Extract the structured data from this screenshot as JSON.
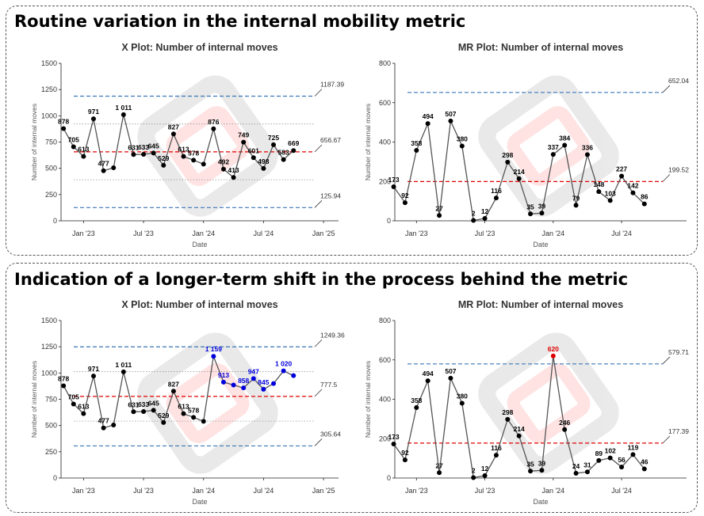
{
  "panels": [
    {
      "title": "Routine variation in the internal mobility metric",
      "charts": [
        {
          "type": "line",
          "title": "X Plot: Number of internal moves",
          "xlabel": "Date",
          "ylabel": "Number of internal moves",
          "ylim": [
            0,
            1500
          ],
          "yticks": [
            0,
            250,
            500,
            750,
            1000,
            1250,
            1500
          ],
          "x_ticks": [
            "Jan '23",
            "Jul '23",
            "Jan '24",
            "Jul '24",
            "Jan '25"
          ],
          "x_tick_months": [
            12,
            18,
            24,
            30,
            36
          ],
          "xlim": [
            9.75,
            37.5
          ],
          "months": [
            10,
            11,
            12,
            13,
            14,
            15,
            16,
            17,
            18,
            19,
            20,
            21,
            22,
            23,
            24,
            25,
            26,
            27,
            28,
            29,
            30,
            31,
            32,
            33
          ],
          "values": [
            878,
            705,
            613,
            971,
            477,
            505,
            1011,
            631,
            633,
            645,
            529,
            827,
            613,
            578,
            540,
            876,
            492,
            413,
            749,
            601,
            498,
            725,
            583,
            669
          ],
          "labels": [
            "878",
            "705",
            "613",
            "971",
            "477",
            "",
            "1 011",
            "631",
            "633",
            "645",
            "529",
            "827",
            "613",
            "578",
            "",
            "876",
            "492",
            "413",
            "749",
            "601",
            "498",
            "725",
            "583",
            "669"
          ],
          "point_colors": [],
          "center": 656.67,
          "center_label": "656.67",
          "ucl": 1187.39,
          "ucl_label": "1187.39",
          "lcl": 125.94,
          "lcl_label": "125.94",
          "sigma_lines": [
            391.3,
            922.0
          ],
          "colors": {
            "line": "#555555",
            "center": "#e00000",
            "limits": "#3a76b8",
            "grid": "#999999"
          }
        },
        {
          "type": "line",
          "title": "MR Plot: Number of internal moves",
          "xlabel": "Date",
          "ylabel": "Number of internal moves",
          "ylim": [
            0,
            800
          ],
          "yticks": [
            0,
            200,
            400,
            600,
            800
          ],
          "x_ticks": [
            "Jan '23",
            "Jul '23",
            "Jan '24",
            "Jul '24"
          ],
          "x_tick_months": [
            12,
            18,
            24,
            30
          ],
          "xlim": [
            10.1,
            35.7
          ],
          "months": [
            10,
            11,
            12,
            13,
            14,
            15,
            16,
            17,
            18,
            19,
            20,
            21,
            22,
            23,
            24,
            25,
            26,
            27,
            28,
            29,
            30,
            31,
            32
          ],
          "values": [
            173,
            92,
            358,
            494,
            27,
            507,
            380,
            2,
            12,
            116,
            298,
            214,
            35,
            39,
            337,
            384,
            79,
            336,
            148,
            103,
            227,
            142,
            86
          ],
          "labels": [
            "173",
            "92",
            "358",
            "494",
            "27",
            "507",
            "380",
            "2",
            "12",
            "116",
            "298",
            "214",
            "35",
            "39",
            "337",
            "384",
            "79",
            "336",
            "148",
            "103",
            "227",
            "142",
            "86"
          ],
          "point_colors": [],
          "center": 199.52,
          "center_label": "199.52",
          "ucl": 652.04,
          "ucl_label": "652.04",
          "lcl": null,
          "lcl_label": "",
          "sigma_lines": [],
          "colors": {
            "line": "#555555",
            "center": "#e00000",
            "limits": "#3a76b8",
            "grid": "#999999"
          }
        }
      ]
    },
    {
      "title": "Indication of a longer-term shift in the process behind the metric",
      "charts": [
        {
          "type": "line",
          "title": "X Plot: Number of internal moves",
          "xlabel": "Date",
          "ylabel": "Number of internal moves",
          "ylim": [
            0,
            1500
          ],
          "yticks": [
            0,
            250,
            500,
            750,
            1000,
            1250,
            1500
          ],
          "x_ticks": [
            "Jan '23",
            "Jul '23",
            "Jan '24",
            "Jul '24",
            "Jan '25"
          ],
          "x_tick_months": [
            12,
            18,
            24,
            30,
            36
          ],
          "xlim": [
            9.75,
            37.5
          ],
          "months": [
            10,
            11,
            12,
            13,
            14,
            15,
            16,
            17,
            18,
            19,
            20,
            21,
            22,
            23,
            24,
            25,
            26,
            27,
            28,
            29,
            30,
            31,
            32,
            33
          ],
          "values": [
            878,
            705,
            613,
            971,
            477,
            505,
            1011,
            631,
            633,
            645,
            529,
            827,
            613,
            578,
            540,
            1159,
            913,
            886,
            858,
            947,
            845,
            900,
            1020,
            975
          ],
          "labels": [
            "878",
            "705",
            "613",
            "971",
            "477",
            "",
            "1 011",
            "631",
            "633",
            "645",
            "529",
            "827",
            "613",
            "578",
            "",
            "1 159",
            "913",
            "",
            "858",
            "947",
            "845",
            "",
            "1 020",
            ""
          ],
          "point_colors": [
            "k",
            "k",
            "k",
            "k",
            "k",
            "k",
            "k",
            "k",
            "k",
            "k",
            "k",
            "k",
            "k",
            "k",
            "k",
            "b",
            "b",
            "b",
            "b",
            "b",
            "b",
            "b",
            "b",
            "b"
          ],
          "center": 777.5,
          "center_label": "777.5",
          "ucl": 1249.36,
          "ucl_label": "1249.36",
          "lcl": 305.64,
          "lcl_label": "305.64",
          "sigma_lines": [
            541.6,
            1013.4
          ],
          "colors": {
            "line": "#555555",
            "center": "#e00000",
            "limits": "#3a76b8",
            "grid": "#999999",
            "highlight": "#0000dd"
          }
        },
        {
          "type": "line",
          "title": "MR Plot: Number of internal moves",
          "xlabel": "Date",
          "ylabel": "Number of internal moves",
          "ylim": [
            0,
            800
          ],
          "yticks": [
            0,
            200,
            400,
            600,
            800
          ],
          "x_ticks": [
            "Jan '23",
            "Jul '23",
            "Jan '24",
            "Jul '24"
          ],
          "x_tick_months": [
            12,
            18,
            24,
            30
          ],
          "xlim": [
            10.1,
            35.7
          ],
          "months": [
            10,
            11,
            12,
            13,
            14,
            15,
            16,
            17,
            18,
            19,
            20,
            21,
            22,
            23,
            24,
            25,
            26,
            27,
            28,
            29,
            30,
            31,
            32
          ],
          "values": [
            173,
            92,
            358,
            494,
            27,
            507,
            380,
            2,
            12,
            116,
            298,
            214,
            35,
            39,
            620,
            246,
            24,
            31,
            89,
            102,
            56,
            119,
            46
          ],
          "labels": [
            "173",
            "92",
            "358",
            "494",
            "27",
            "507",
            "380",
            "2",
            "12",
            "116",
            "298",
            "214",
            "35",
            "39",
            "620",
            "246",
            "24",
            "31",
            "89",
            "102",
            "56",
            "119",
            "46"
          ],
          "point_colors": [
            "k",
            "k",
            "k",
            "k",
            "k",
            "k",
            "k",
            "k",
            "k",
            "k",
            "k",
            "k",
            "k",
            "k",
            "r",
            "k",
            "k",
            "k",
            "k",
            "k",
            "k",
            "k",
            "k"
          ],
          "center": 177.39,
          "center_label": "177.39",
          "ucl": 579.71,
          "ucl_label": "579.71",
          "lcl": null,
          "lcl_label": "",
          "sigma_lines": [],
          "colors": {
            "line": "#555555",
            "center": "#e00000",
            "limits": "#3a76b8",
            "grid": "#999999",
            "highlight": "#e00000"
          }
        }
      ]
    }
  ]
}
